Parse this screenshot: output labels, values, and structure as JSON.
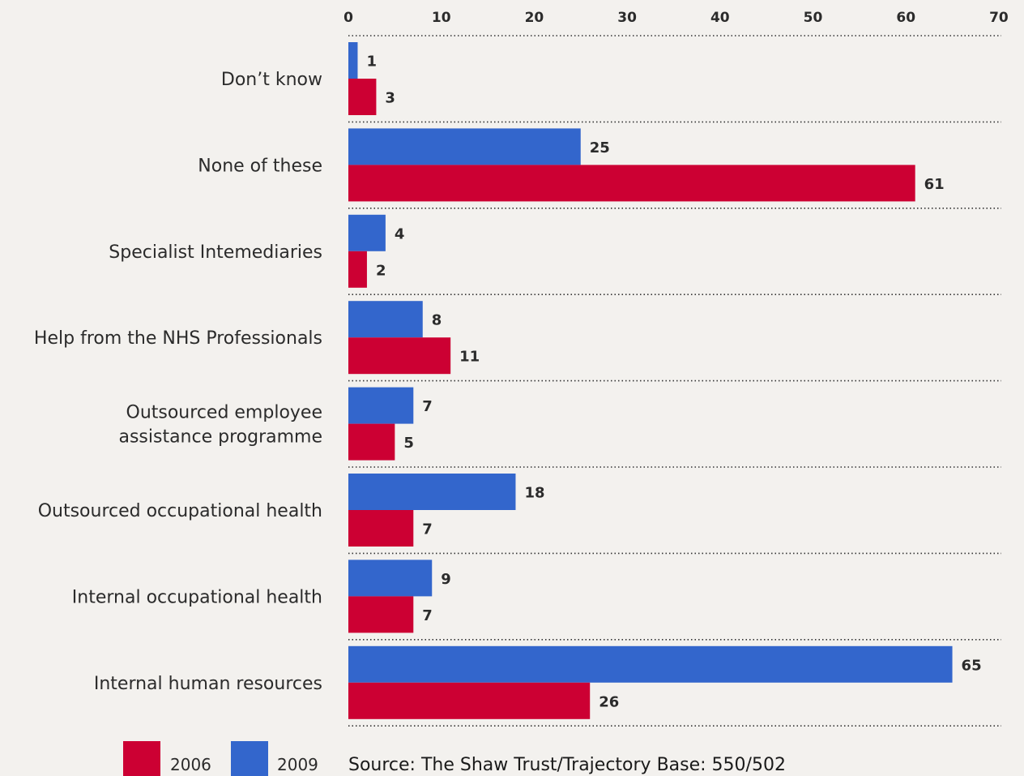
{
  "chart_data": {
    "type": "bar",
    "orientation": "horizontal",
    "categories": [
      "Don’t know",
      "None of these",
      "Specialist Intemediaries",
      "Help from the NHS Professionals",
      "Outsourced employee assistance programme",
      "Outsourced occupational health",
      "Internal occupational health",
      "Internal human resources"
    ],
    "category_lines": [
      [
        "Don’t know"
      ],
      [
        "None of these"
      ],
      [
        "Specialist Intemediaries"
      ],
      [
        "Help from the NHS Professionals"
      ],
      [
        "Outsourced employee",
        "assistance programme"
      ],
      [
        "Outsourced occupational health"
      ],
      [
        "Internal occupational health"
      ],
      [
        "Internal human resources"
      ]
    ],
    "series": [
      {
        "name": "2009",
        "color": "#3366cc",
        "values": [
          1,
          25,
          4,
          8,
          7,
          18,
          9,
          65
        ]
      },
      {
        "name": "2006",
        "color": "#cc0033",
        "values": [
          3,
          61,
          2,
          11,
          5,
          7,
          7,
          26
        ]
      }
    ],
    "xlim": [
      0,
      70
    ],
    "xticks": [
      0,
      10,
      20,
      30,
      40,
      50,
      60,
      70
    ],
    "xaxis_position": "top",
    "grid": "dotted horizontal separators",
    "legend": {
      "placement": "bottom-left",
      "entries": [
        {
          "label": "2006",
          "color": "#cc0033"
        },
        {
          "label": "2009",
          "color": "#3366cc"
        }
      ]
    },
    "source": "Source: The Shaw Trust/Trajectory  Base: 550/502"
  }
}
